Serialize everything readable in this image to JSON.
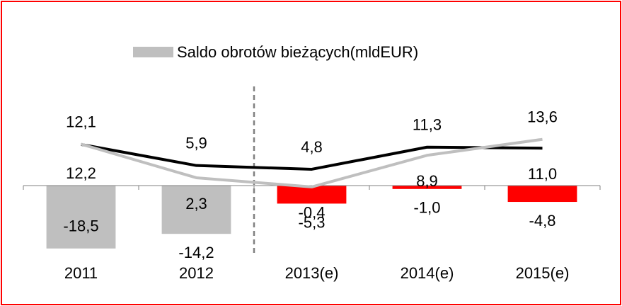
{
  "chart_data": {
    "type": "bar-line",
    "categories": [
      "2011",
      "2012",
      "2013(e)",
      "2014(e)",
      "2015(e)"
    ],
    "series": [
      {
        "name": "Saldo obrotów bieżących(mldEUR)",
        "type": "bar",
        "color": "#bfbfbf",
        "colors": [
          "#bfbfbf",
          "#bfbfbf",
          "#ff0000",
          "#ff0000",
          "#ff0000"
        ],
        "values": [
          -18.5,
          -14.2,
          -5.3,
          -1.0,
          -4.8
        ],
        "value_labels": [
          "-18,5",
          "-14,2",
          "-5,3",
          "-1,0",
          "-4,8"
        ]
      },
      {
        "type": "line",
        "color": "#000000",
        "values": [
          12.1,
          5.9,
          4.8,
          11.3,
          11.0
        ],
        "value_labels": [
          "12,1",
          "5,9",
          "4,8",
          "11,3",
          "11,0"
        ]
      },
      {
        "type": "line",
        "color": "#bfbfbf",
        "values": [
          12.2,
          2.3,
          -0.4,
          8.9,
          13.6
        ],
        "value_labels": [
          "12,2",
          "2,3",
          "-0,4",
          "8,9",
          "13,6"
        ]
      }
    ],
    "ylim": [
      -20,
      30
    ]
  }
}
